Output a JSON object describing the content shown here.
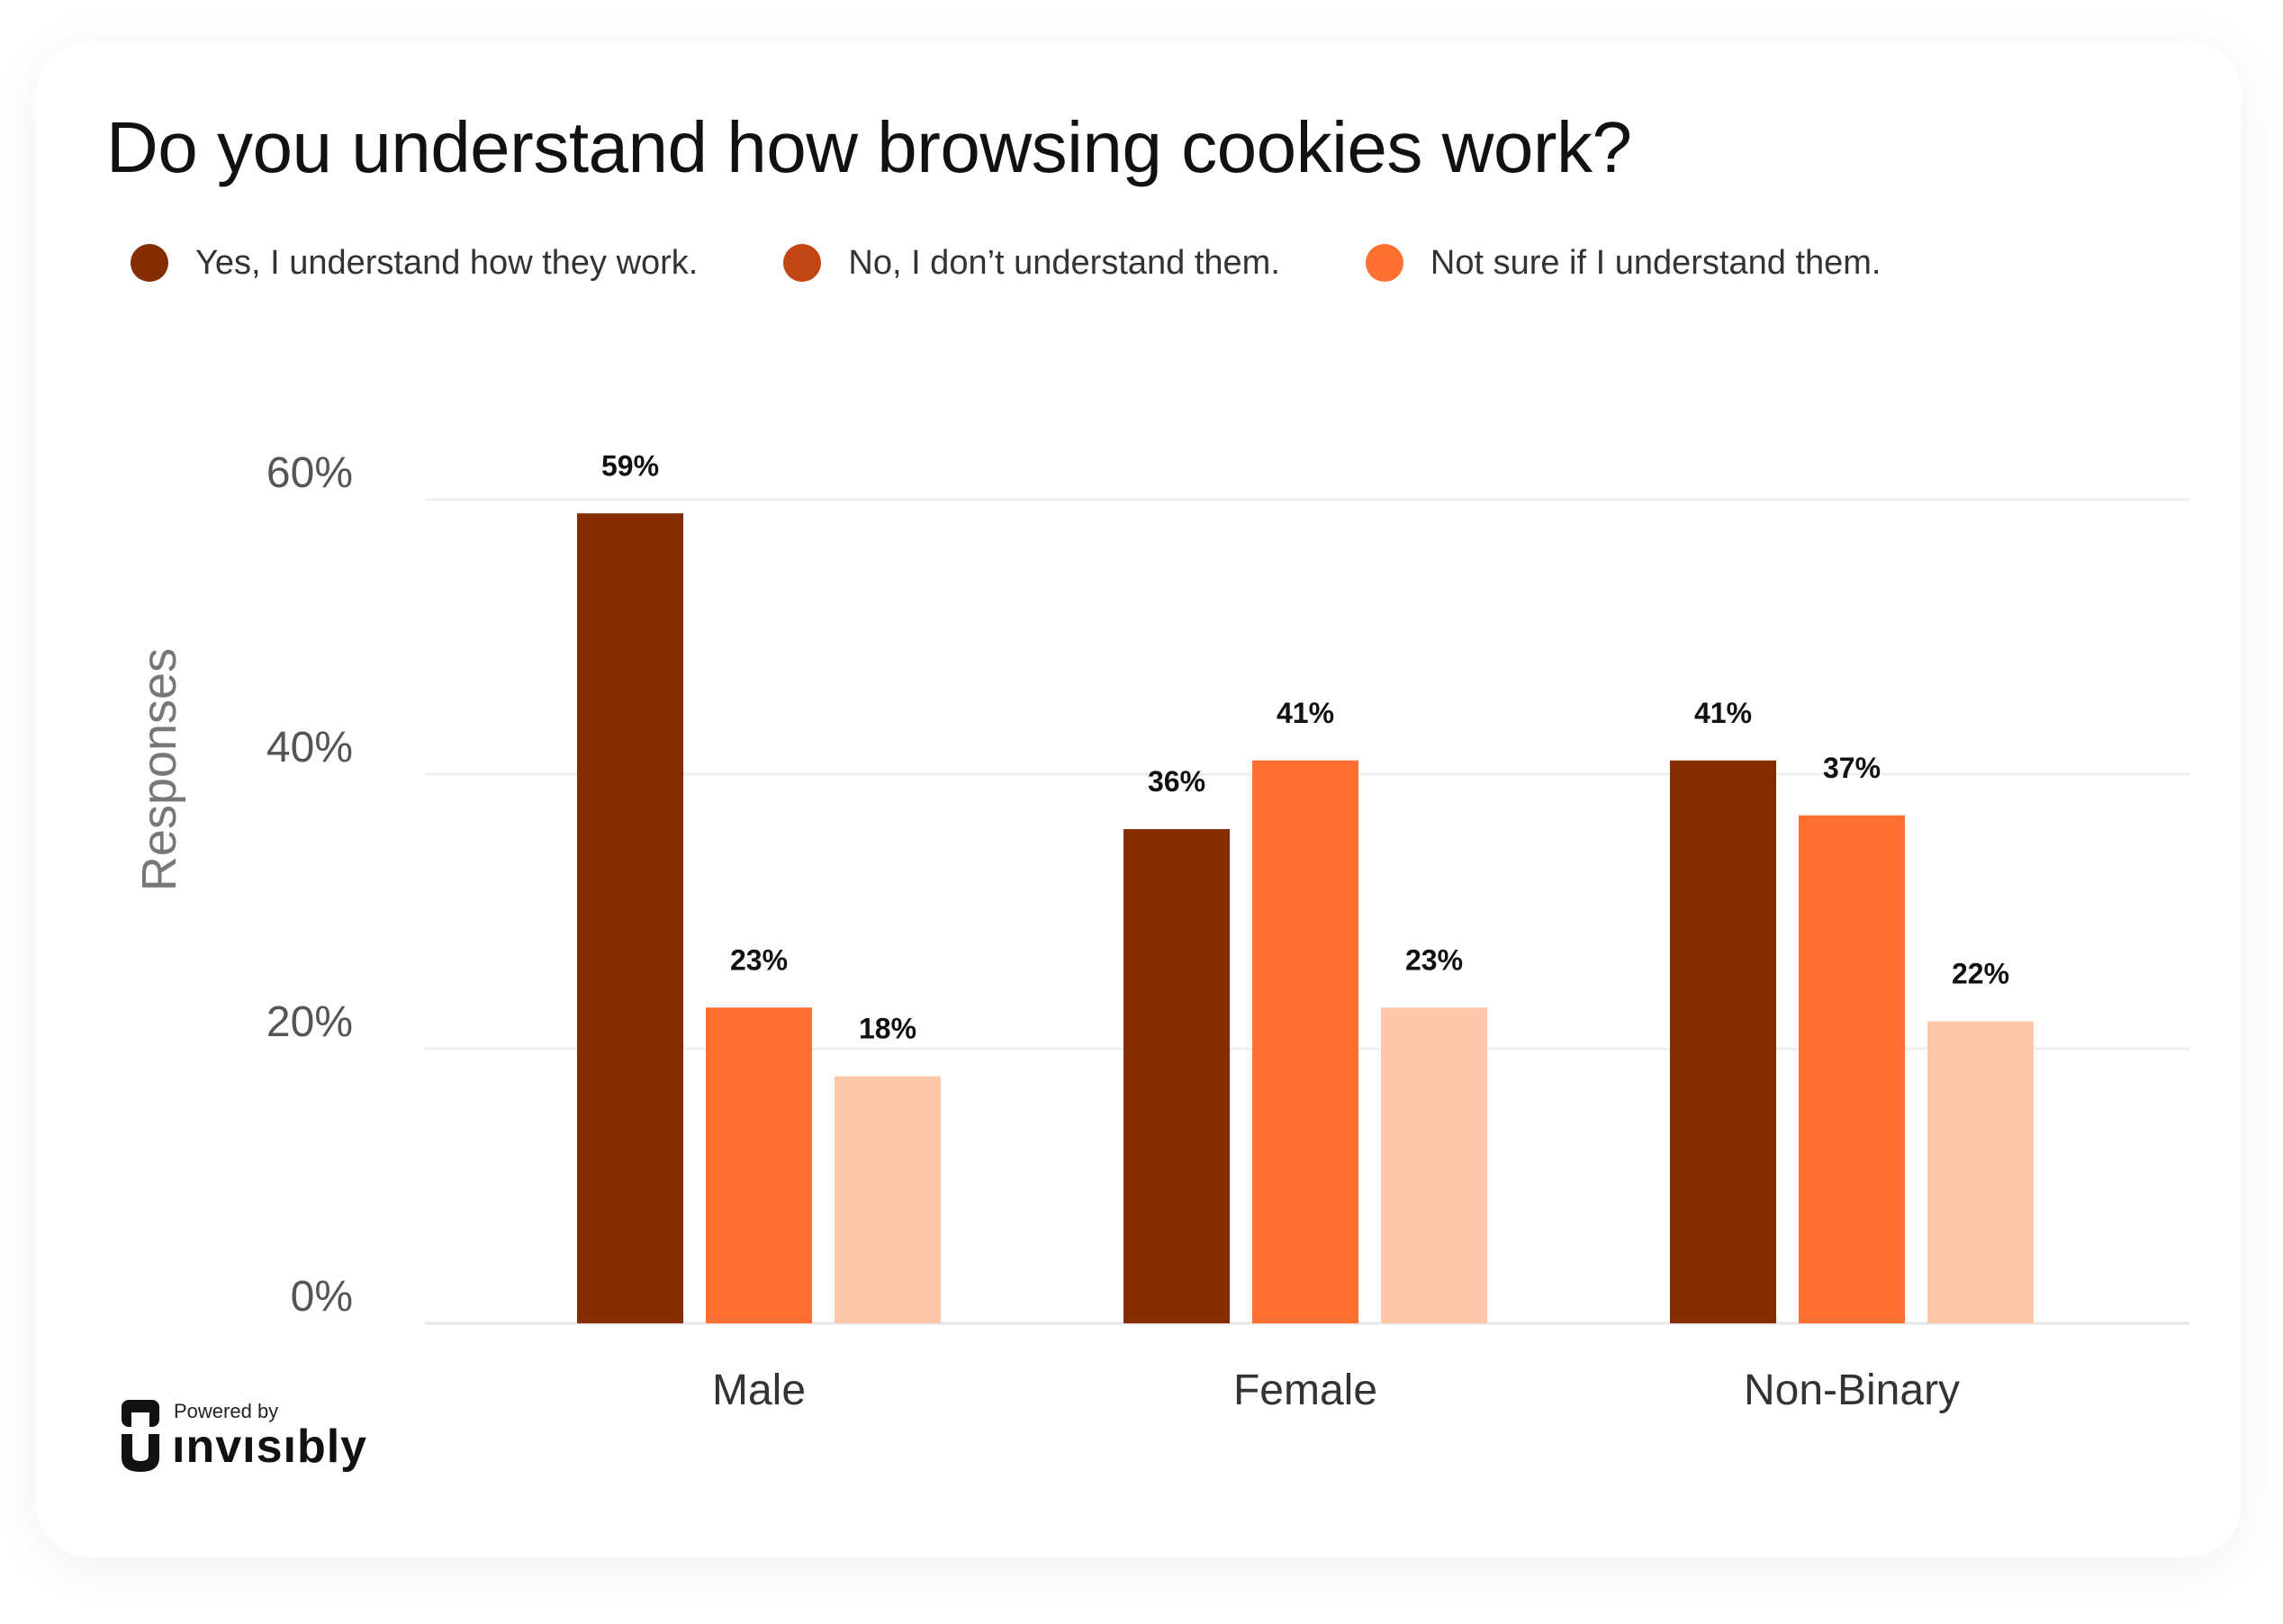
{
  "title": "Do you understand how browsing cookies work?",
  "colors": {
    "yes": "#832D00",
    "no": "#FF6F30",
    "not_sure": "#FFC7AA",
    "legend_yes": "#832D00",
    "legend_no": "#C24514",
    "legend_not_sure": "#FF6F30"
  },
  "legend": [
    {
      "label": "Yes, I understand how they work."
    },
    {
      "label": "No, I don’t understand them."
    },
    {
      "label": "Not sure if I understand them."
    }
  ],
  "chart_data": {
    "type": "bar",
    "title": "Do you understand how browsing cookies work?",
    "ylabel": "Responses",
    "xlabel": "",
    "ylim": [
      0,
      60
    ],
    "yticks": [
      "0%",
      "20%",
      "40%",
      "60%"
    ],
    "ytick_values": [
      0,
      20,
      40,
      60
    ],
    "categories": [
      "Male",
      "Female",
      "Non-Binary"
    ],
    "series": [
      {
        "name": "Yes, I understand how they work.",
        "values": [
          59,
          36,
          41
        ],
        "labels": [
          "59%",
          "36%",
          "41%"
        ]
      },
      {
        "name": "No, I don’t understand them.",
        "values": [
          23,
          41,
          37
        ],
        "labels": [
          "23%",
          "41%",
          "37%"
        ]
      },
      {
        "name": "Not sure if I understand them.",
        "values": [
          18,
          23,
          22
        ],
        "labels": [
          "18%",
          "23%",
          "22%"
        ]
      }
    ],
    "grid": true,
    "legend_position": "top-left"
  },
  "brand": {
    "powered_by": "Powered by",
    "name": "ınvısıbly",
    "logo_icon": "invisibly-logo-icon"
  }
}
